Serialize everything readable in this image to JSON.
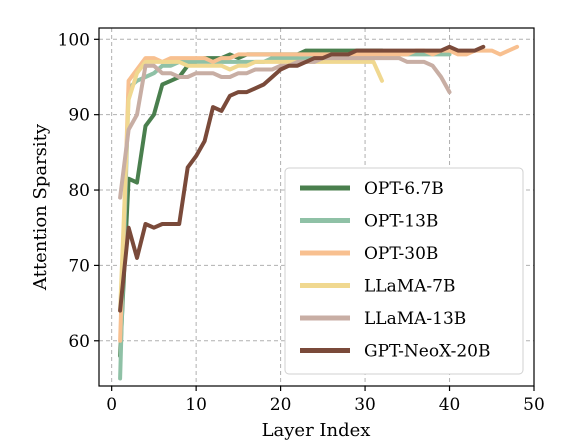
{
  "chart_data": {
    "type": "line",
    "title": "",
    "xlabel": "Layer Index",
    "ylabel": "Attention Sparsity",
    "xlim": [
      -1.5,
      50
    ],
    "ylim": [
      54,
      101.5
    ],
    "xticks": [
      0,
      10,
      20,
      30,
      40,
      50
    ],
    "yticks": [
      60,
      70,
      80,
      90,
      100
    ],
    "grid": true,
    "legend_position": "lower-right",
    "series": [
      {
        "name": "OPT-6.7B",
        "color": "#4a7f4e",
        "x": [
          1,
          2,
          3,
          4,
          5,
          6,
          7,
          8,
          9,
          10,
          11,
          12,
          13,
          14,
          15,
          16,
          17,
          18,
          19,
          20,
          21,
          22,
          23,
          24,
          25,
          26,
          27,
          28,
          29,
          30,
          31,
          32
        ],
        "y": [
          58,
          81.5,
          81,
          88.5,
          90,
          94,
          94.5,
          95,
          96.5,
          97,
          97.5,
          97.5,
          97.5,
          98,
          97.5,
          98,
          98,
          98,
          98,
          98,
          98,
          98,
          98.5,
          98.5,
          98.5,
          98.5,
          98.5,
          98.5,
          98.5,
          98.5,
          98.5,
          98.5
        ]
      },
      {
        "name": "OPT-13B",
        "color": "#8fc1a6",
        "x": [
          1,
          2,
          3,
          4,
          5,
          6,
          7,
          8,
          9,
          10,
          11,
          12,
          13,
          14,
          15,
          16,
          17,
          18,
          19,
          20,
          21,
          22,
          23,
          24,
          25,
          26,
          27,
          28,
          29,
          30,
          31,
          32,
          33,
          34,
          35,
          36,
          37,
          38,
          39,
          40
        ],
        "y": [
          55,
          93.5,
          94.5,
          95,
          95.5,
          96.5,
          96.5,
          97,
          97,
          97,
          97,
          97,
          97,
          97,
          97,
          97,
          97,
          97,
          97.5,
          97.5,
          97.5,
          97.5,
          97.5,
          97.5,
          97.5,
          97.5,
          97.5,
          97.5,
          97.5,
          97.5,
          97.5,
          98,
          98,
          98,
          98,
          98,
          98,
          98,
          98,
          98
        ]
      },
      {
        "name": "OPT-30B",
        "color": "#f8c090",
        "x": [
          1,
          2,
          3,
          4,
          5,
          6,
          7,
          8,
          9,
          10,
          11,
          12,
          13,
          14,
          15,
          16,
          17,
          18,
          19,
          20,
          21,
          22,
          23,
          24,
          25,
          26,
          27,
          28,
          29,
          30,
          31,
          32,
          33,
          34,
          35,
          36,
          37,
          38,
          39,
          40,
          41,
          42,
          43,
          44,
          45,
          46,
          47,
          48
        ],
        "y": [
          60,
          94.5,
          96,
          97.5,
          97.5,
          97,
          97.5,
          97.5,
          97.5,
          97.5,
          97.5,
          97,
          97.5,
          97.5,
          98,
          98,
          98,
          98,
          98,
          98,
          98,
          98,
          98,
          98,
          98,
          98,
          98,
          98,
          98,
          98,
          98,
          98,
          98,
          98,
          98,
          98.5,
          98.5,
          98,
          98.5,
          98.5,
          98,
          98,
          98.5,
          98.5,
          98.5,
          98,
          98.5,
          99
        ]
      },
      {
        "name": "LLaMA-7B",
        "color": "#f0d890",
        "x": [
          1,
          2,
          3,
          4,
          5,
          6,
          7,
          8,
          9,
          10,
          11,
          12,
          13,
          14,
          15,
          16,
          17,
          18,
          19,
          20,
          21,
          22,
          23,
          24,
          25,
          26,
          27,
          28,
          29,
          30,
          31,
          32
        ],
        "y": [
          64,
          92,
          95.5,
          97,
          97,
          97,
          97,
          97,
          96.5,
          96.5,
          96.5,
          96.5,
          96.5,
          96,
          96.5,
          96.5,
          97,
          97,
          97,
          97,
          97,
          97,
          97,
          97,
          97,
          97,
          97,
          97,
          97,
          97,
          97,
          94.5
        ]
      },
      {
        "name": "LLaMA-13B",
        "color": "#c8aea4",
        "x": [
          1,
          2,
          3,
          4,
          5,
          6,
          7,
          8,
          9,
          10,
          11,
          12,
          13,
          14,
          15,
          16,
          17,
          18,
          19,
          20,
          21,
          22,
          23,
          24,
          25,
          26,
          27,
          28,
          29,
          30,
          31,
          32,
          33,
          34,
          35,
          36,
          37,
          38,
          39,
          40
        ],
        "y": [
          79,
          88,
          90,
          96.5,
          96.5,
          95.5,
          95.5,
          95,
          95,
          95.5,
          95.5,
          95.5,
          95,
          95,
          95.5,
          95.5,
          96,
          96,
          96,
          96.5,
          96.5,
          97,
          97,
          97,
          97.5,
          97.5,
          97.5,
          97.5,
          97.5,
          97.5,
          97.5,
          97.5,
          97.5,
          97.5,
          97,
          97,
          97,
          96.5,
          95,
          93
        ]
      },
      {
        "name": "GPT-NeoX-20B",
        "color": "#7a4a3a",
        "x": [
          1,
          2,
          3,
          4,
          5,
          6,
          7,
          8,
          9,
          10,
          11,
          12,
          13,
          14,
          15,
          16,
          17,
          18,
          19,
          20,
          21,
          22,
          23,
          24,
          25,
          26,
          27,
          28,
          29,
          30,
          31,
          32,
          33,
          34,
          35,
          36,
          37,
          38,
          39,
          40,
          41,
          42,
          43,
          44
        ],
        "y": [
          64,
          75,
          71,
          75.5,
          75,
          75.5,
          75.5,
          75.5,
          83,
          84.5,
          86.5,
          91,
          90.5,
          92.5,
          93,
          93,
          93.5,
          94,
          95,
          96,
          96.5,
          96.5,
          97,
          97.5,
          97.5,
          98,
          98,
          98,
          98.5,
          98.5,
          98.5,
          98.5,
          98.5,
          98.5,
          98.5,
          98.5,
          98.5,
          98.5,
          98.5,
          99,
          98.5,
          98.5,
          98.5,
          99
        ]
      }
    ]
  }
}
